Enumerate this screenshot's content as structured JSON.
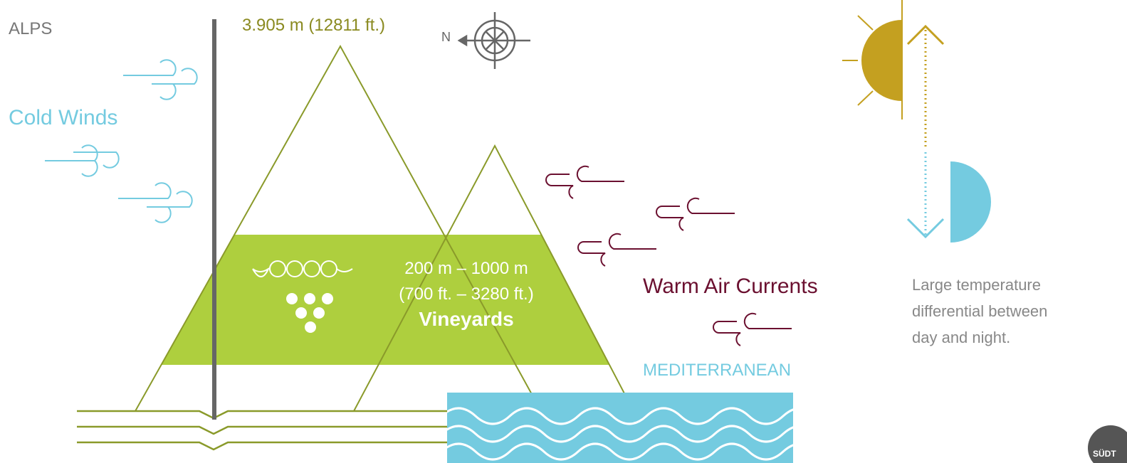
{
  "labels": {
    "region": "ALPS",
    "summit": "3.905 m (12811 ft.)",
    "north": "N",
    "cold_winds": "Cold Winds",
    "vineyard_altitude_m": "200 m – 1000 m",
    "vineyard_altitude_ft": "(700 ft. – 3280 ft.)",
    "vineyards": "Vineyards",
    "warm_air": "Warm Air Currents",
    "sea": "MEDITERRANEAN",
    "temperature_note": [
      "Large temperature",
      "differential between",
      "day and night."
    ],
    "logo": "SÜDT"
  }
}
